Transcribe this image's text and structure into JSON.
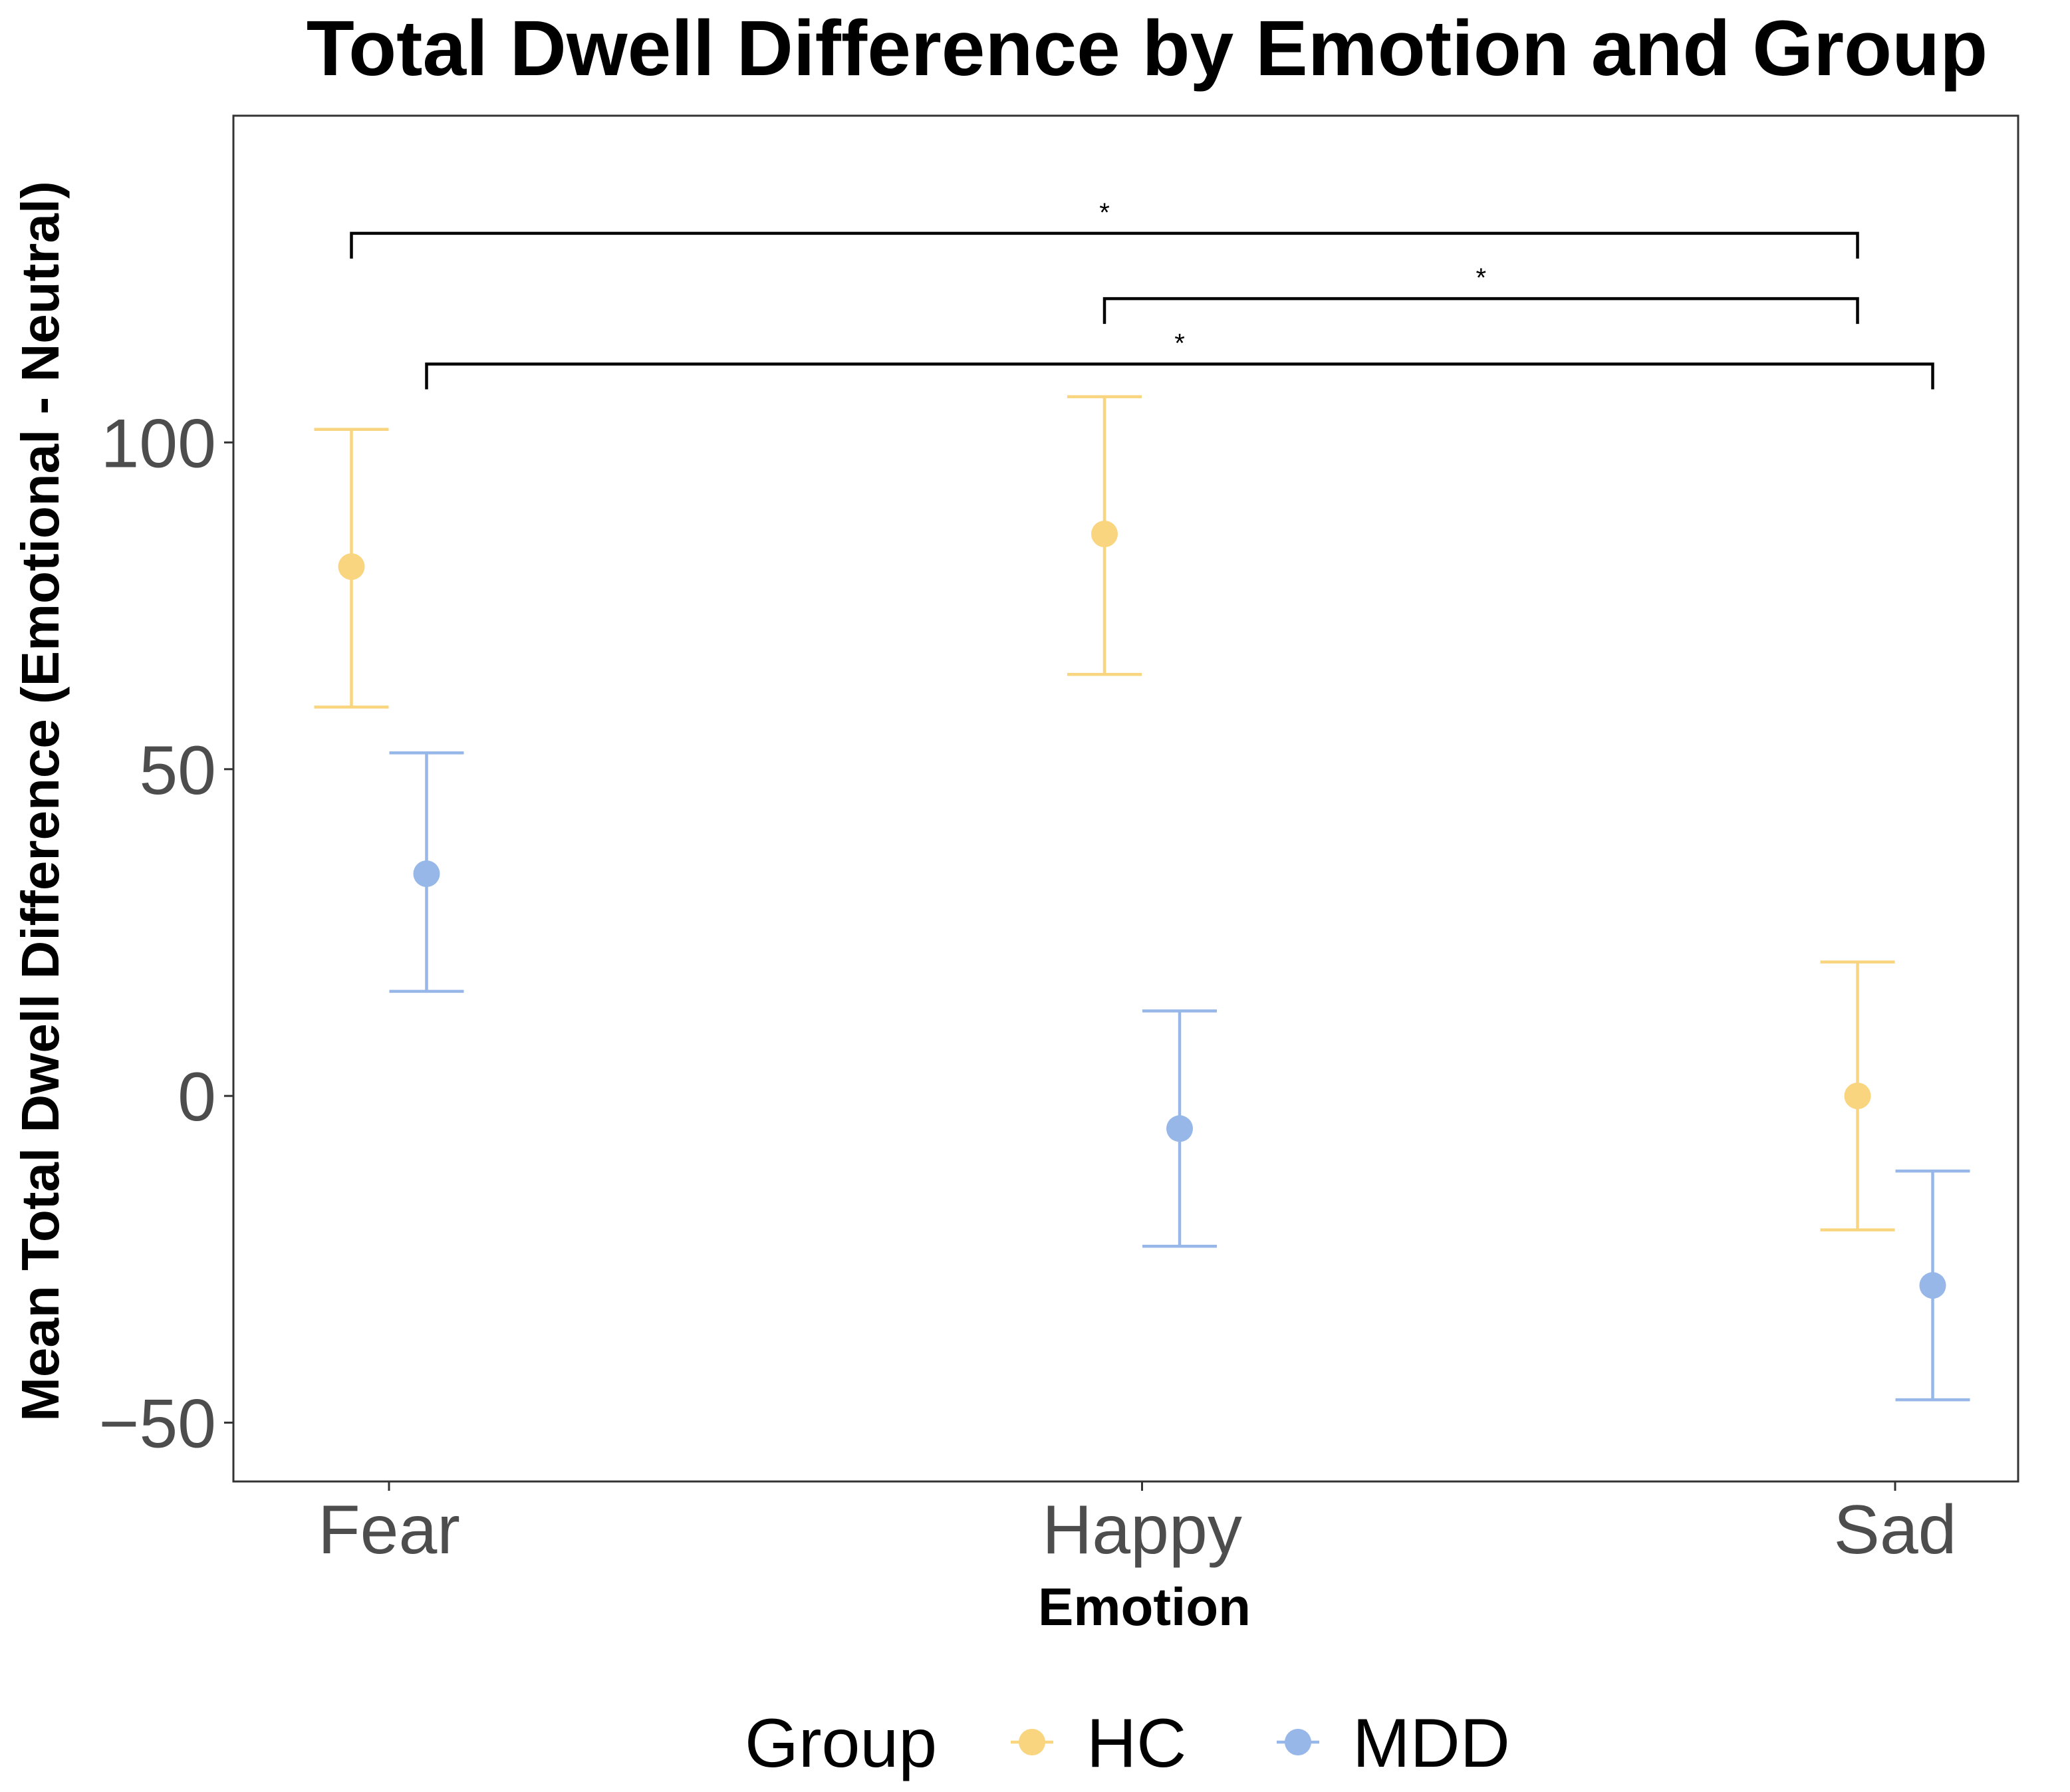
{
  "chart_data": {
    "type": "scatter",
    "title": "Total Dwell Difference by Emotion and Group",
    "xlabel": "Emotion",
    "ylabel": "Mean Total Dwell Difference (Emotional - Neutral)",
    "categories": [
      "Fear",
      "Happy",
      "Sad"
    ],
    "ylim": [
      -59,
      150
    ],
    "yticks": [
      -50,
      0,
      50,
      100
    ],
    "ytick_labels": [
      "−50",
      "0",
      "50",
      "100"
    ],
    "grid": false,
    "legend": {
      "title": "Group",
      "position": "bottom",
      "entries": [
        "HC",
        "MDD"
      ]
    },
    "series": [
      {
        "name": "HC",
        "color": "#F9D57F",
        "means": [
          81,
          86,
          0
        ],
        "lower": [
          59.5,
          64.5,
          -20.5
        ],
        "upper": [
          102,
          107,
          20.5
        ]
      },
      {
        "name": "MDD",
        "color": "#96B7E8",
        "means": [
          34,
          -5,
          -29
        ],
        "lower": [
          16,
          -23,
          -46.5
        ],
        "upper": [
          52.5,
          13,
          -11.5
        ]
      }
    ],
    "significance": [
      {
        "from_category": "Fear",
        "from_group": "HC",
        "to_category": "Sad",
        "to_group": "HC",
        "y": 132,
        "label": "*"
      },
      {
        "from_category": "Happy",
        "from_group": "HC",
        "to_category": "Sad",
        "to_group": "HC",
        "y": 122,
        "label": "*"
      },
      {
        "from_category": "Fear",
        "from_group": "MDD",
        "to_category": "Sad",
        "to_group": "MDD",
        "y": 112,
        "label": "*"
      }
    ]
  }
}
